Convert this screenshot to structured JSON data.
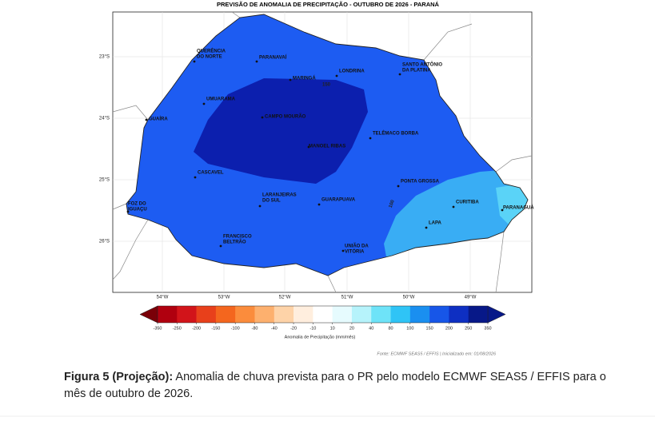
{
  "map": {
    "title": "PREVISÃO DE ANOMALIA DE PRECIPITAÇÃO - OUTUBRO DE 2026 - PARANÁ",
    "lat_labels": [
      "23°S",
      "24°S",
      "25°S",
      "26°S"
    ],
    "lon_labels": [
      "54°W",
      "53°W",
      "52°W",
      "51°W",
      "50°W",
      "49°W"
    ],
    "cities": [
      {
        "label": [
          "QUERÊNCIA",
          "DO NORTE"
        ]
      },
      {
        "label": [
          "PARANAVAÍ"
        ]
      },
      {
        "label": [
          "MARINGÁ"
        ]
      },
      {
        "label": [
          "LONDRINA"
        ]
      },
      {
        "label": [
          "SANTO ANTÔNIO",
          "DA PLATINA"
        ]
      },
      {
        "label": [
          "UMUARAMA"
        ]
      },
      {
        "label": [
          "GUAÍRA"
        ]
      },
      {
        "label": [
          "CAMPO MOURÃO"
        ]
      },
      {
        "label": [
          "TELÊMACO BORBA"
        ]
      },
      {
        "label": [
          "MANOEL RIBAS"
        ]
      },
      {
        "label": [
          "CASCAVEL"
        ]
      },
      {
        "label": [
          "PONTA GROSSA"
        ]
      },
      {
        "label": [
          "LARANJEIRAS",
          "DO SUL"
        ]
      },
      {
        "label": [
          "GUARAPUAVA"
        ]
      },
      {
        "label": [
          "FOZ DO",
          "IGUAÇU"
        ]
      },
      {
        "label": [
          "CURITIBA"
        ]
      },
      {
        "label": [
          "PARANAGUÁ"
        ]
      },
      {
        "label": [
          "LAPA"
        ]
      },
      {
        "label": [
          "FRANCISCO",
          "BELTRÃO"
        ]
      },
      {
        "label": [
          "UNIÃO DA",
          "VITÓRIA"
        ]
      }
    ],
    "contour_labels": [
      "150",
      "100"
    ]
  },
  "colorbar": {
    "ticks": [
      "-350",
      "-250",
      "-200",
      "-150",
      "-100",
      "-80",
      "-40",
      "-20",
      "-10",
      "10",
      "20",
      "40",
      "80",
      "100",
      "150",
      "200",
      "250",
      "350"
    ],
    "label": "Anomalia de Precipitação (mm/mês)"
  },
  "source": "Fonte: ECMWF SEAS5 / EFFIS  |  Inicializado em: 01/08/2026",
  "caption": {
    "lead": "Figura 5 (Projeção):",
    "text": "Anomalia de chuva prevista para o PR pelo modelo ECMWF SEAS5 / EFFIS para o mês de outubro de 2026."
  }
}
